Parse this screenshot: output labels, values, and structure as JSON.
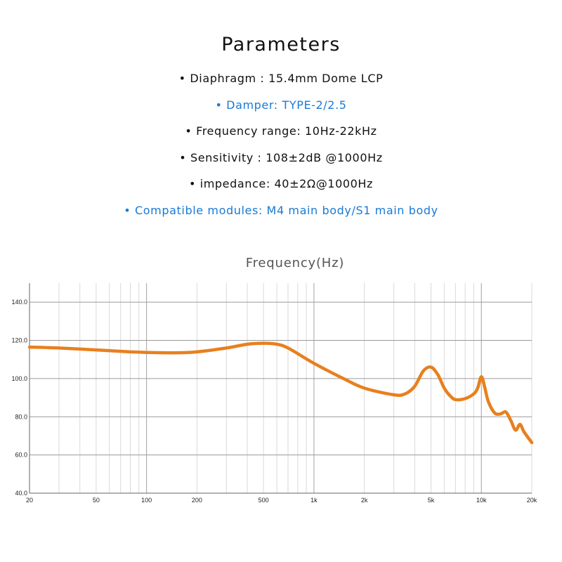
{
  "header": {
    "title": "Parameters",
    "params": [
      {
        "text": "• Diaphragm : 15.4mm  Dome LCP",
        "highlight": false
      },
      {
        "text": "• Damper: TYPE-2/2.5",
        "highlight": true
      },
      {
        "text": "• Frequency range: 10Hz-22kHz",
        "highlight": false
      },
      {
        "text": "• Sensitivity : 108±2dB @1000Hz",
        "highlight": false
      },
      {
        "text": "• impedance: 40±2Ω@1000Hz",
        "highlight": false
      },
      {
        "text": "• Compatible modules:  M4 main body/S1 main body",
        "highlight": true
      }
    ]
  },
  "chart_data": {
    "type": "line",
    "title": "Frequency(Hz)",
    "xscale": "log",
    "xlim": [
      20,
      20000
    ],
    "ylim": [
      40,
      150
    ],
    "xticks": [
      20,
      50,
      100,
      200,
      500,
      1000,
      2000,
      5000,
      10000,
      20000
    ],
    "xtick_labels": [
      "20",
      "50",
      "100",
      "200",
      "500",
      "1k",
      "2k",
      "5k",
      "10k",
      "20k"
    ],
    "yticks": [
      40,
      60,
      80,
      100,
      120,
      140
    ],
    "ytick_labels": [
      "40.0",
      "60.0",
      "80.0",
      "100.0",
      "120.0",
      "140.0"
    ],
    "grid": true,
    "line_color": "#e8801e",
    "series": [
      {
        "x": [
          20,
          30,
          50,
          80,
          100,
          150,
          200,
          300,
          400,
          500,
          600,
          700,
          1000,
          1500,
          2000,
          3000,
          3500,
          4000,
          4500,
          5000,
          5500,
          6000,
          6500,
          7000,
          8000,
          9000,
          9500,
          10000,
          10500,
          11000,
          12000,
          13000,
          14000,
          15000,
          16000,
          17000,
          18000,
          20000
        ],
        "y": [
          116.5,
          116,
          115,
          114,
          113.7,
          113.5,
          114,
          116,
          118,
          118.5,
          118,
          116,
          108,
          100,
          95,
          91.5,
          92,
          96,
          104,
          106,
          102,
          95,
          91,
          89,
          89.5,
          92,
          95,
          101,
          95,
          88,
          82,
          81.5,
          82.5,
          78,
          73,
          76,
          72,
          66.5
        ]
      }
    ]
  }
}
